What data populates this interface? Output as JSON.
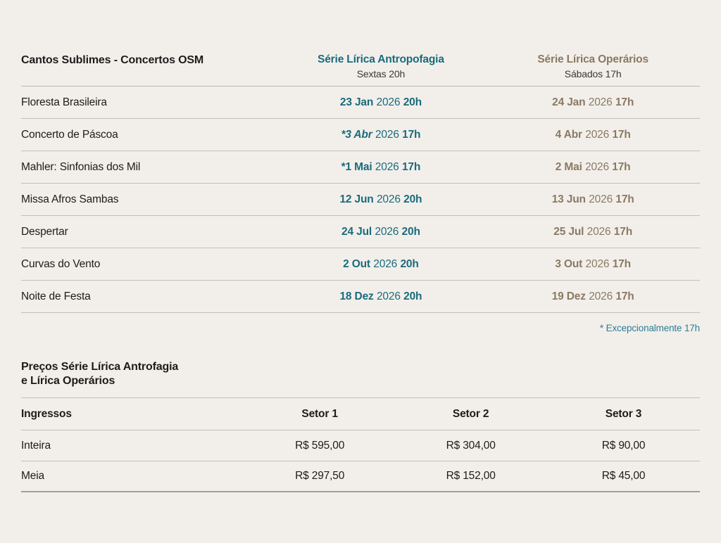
{
  "colors": {
    "background": "#f2efeb",
    "teal": "#1a6b7c",
    "brown": "#8a7962",
    "footnote_teal": "#2b7e94",
    "text": "#1d1c1a",
    "divider": "#c2bdb7"
  },
  "concert_table": {
    "title": "Cantos Sublimes - Concertos OSM",
    "columns": {
      "antropofagia": {
        "label": "Série Lírica Antropofagia",
        "sublabel": "Sextas 20h"
      },
      "operarios": {
        "label": "Série Lírica Operários",
        "sublabel": "Sábados 17h"
      }
    },
    "rows": [
      {
        "name": "Floresta Brasileira",
        "antropofagia": {
          "date": "23 Jan",
          "year": "2026",
          "time": "20h"
        },
        "operarios": {
          "date": "24 Jan",
          "year": "2026",
          "time": "17h"
        }
      },
      {
        "name": "Concerto de Páscoa",
        "antropofagia": {
          "date": "*3 Abr",
          "year": "2026",
          "time": "17h"
        },
        "operarios": {
          "date": "4 Abr",
          "year": "2026",
          "time": "17h"
        }
      },
      {
        "name": "Mahler: Sinfonias dos Mil",
        "antropofagia": {
          "date": "*1 Mai",
          "year": "2026",
          "time": "17h"
        },
        "operarios": {
          "date": "2 Mai",
          "year": "2026",
          "time": "17h"
        }
      },
      {
        "name": "Missa Afros Sambas",
        "antropofagia": {
          "date": "12 Jun",
          "year": "2026",
          "time": "20h"
        },
        "operarios": {
          "date": "13 Jun",
          "year": "2026",
          "time": "17h"
        }
      },
      {
        "name": "Despertar",
        "antropofagia": {
          "date": "24 Jul",
          "year": "2026",
          "time": "20h"
        },
        "operarios": {
          "date": "25 Jul",
          "year": "2026",
          "time": "17h"
        }
      },
      {
        "name": "Curvas do Vento",
        "antropofagia": {
          "date": "2 Out",
          "year": "2026",
          "time": "20h"
        },
        "operarios": {
          "date": "3 Out",
          "year": "2026",
          "time": "17h"
        }
      },
      {
        "name": "Noite de Festa",
        "antropofagia": {
          "date": "18 Dez",
          "year": "2026",
          "time": "20h"
        },
        "operarios": {
          "date": "19 Dez",
          "year": "2026",
          "time": "17h"
        }
      }
    ],
    "footnote": "* Excepcionalmente 17h"
  },
  "prices": {
    "heading_line1": "Preços Série Lírica Antrofagia",
    "heading_line2": "e Lírica Operários",
    "header": {
      "label": "Ingressos",
      "sectors": [
        "Setor 1",
        "Setor 2",
        "Setor 3"
      ]
    },
    "rows": [
      {
        "name": "Inteira",
        "values": [
          "R$ 595,00",
          "R$ 304,00",
          "R$ 90,00"
        ]
      },
      {
        "name": "Meia",
        "values": [
          "R$ 297,50",
          "R$ 152,00",
          "R$ 45,00"
        ]
      }
    ]
  }
}
